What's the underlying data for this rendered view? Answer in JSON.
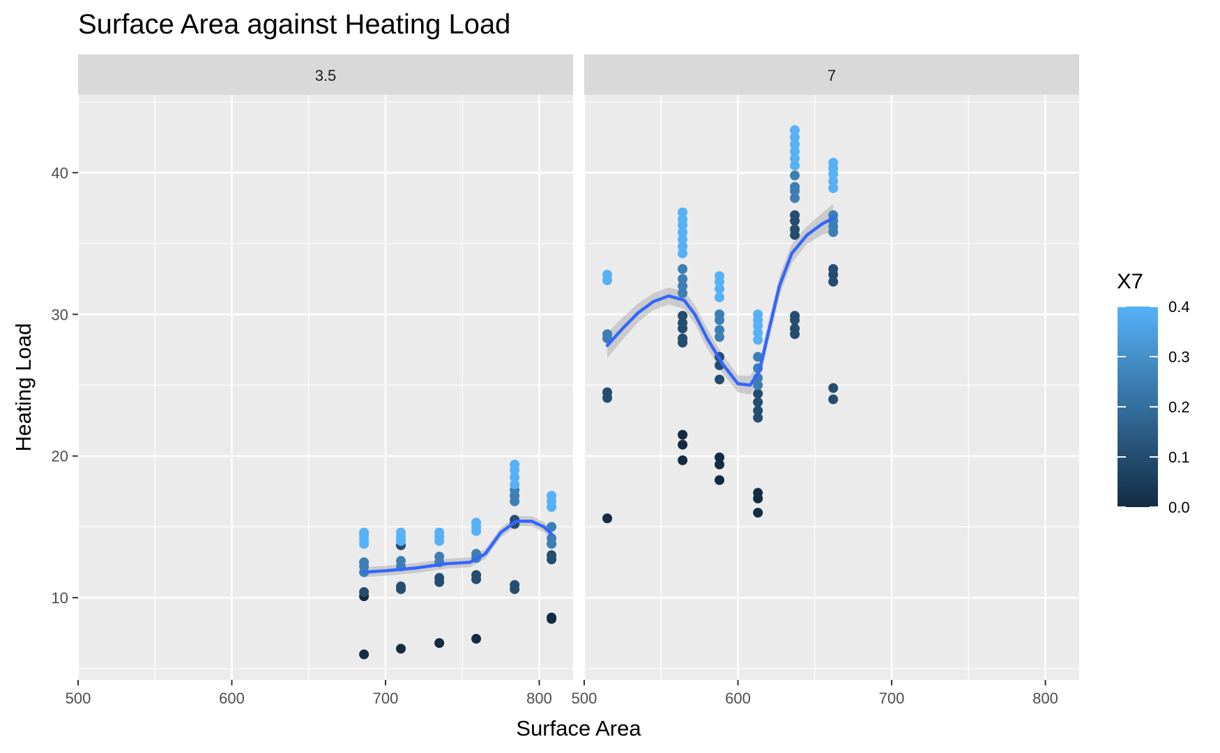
{
  "chart_data": {
    "type": "scatter",
    "title": "Surface Area against Heating Load",
    "xlabel": "Surface Area",
    "ylabel": "Heating Load",
    "xlim": [
      500,
      822
    ],
    "ylim": [
      4.2,
      45.5
    ],
    "x_ticks": [
      "500",
      "600",
      "700",
      "800"
    ],
    "y_ticks": [
      "10",
      "20",
      "30",
      "40"
    ],
    "grid": true,
    "legend": {
      "title": "X7",
      "position": "right",
      "labels": [
        "0.0",
        "0.1",
        "0.2",
        "0.3",
        "0.4"
      ],
      "range": [
        0,
        0.4
      ],
      "colors": [
        "#132B43",
        "#56B1F7"
      ]
    },
    "smooth_color": "#3366FF",
    "panels": [
      {
        "label": "3.5",
        "points": [
          [
            686,
            6.0,
            0
          ],
          [
            686,
            10.1,
            0
          ],
          [
            686,
            10.4,
            0.1
          ],
          [
            686,
            11.8,
            0.25
          ],
          [
            686,
            12.2,
            0.25
          ],
          [
            686,
            12.5,
            0.25
          ],
          [
            686,
            13.8,
            0.4
          ],
          [
            686,
            14.1,
            0.4
          ],
          [
            686,
            14.4,
            0.4
          ],
          [
            686,
            14.6,
            0.4
          ],
          [
            710,
            6.4,
            0
          ],
          [
            710,
            10.6,
            0.1
          ],
          [
            710,
            10.8,
            0.1
          ],
          [
            710,
            12.2,
            0.25
          ],
          [
            710,
            12.6,
            0.25
          ],
          [
            710,
            13.7,
            0.1
          ],
          [
            710,
            14.0,
            0.4
          ],
          [
            710,
            14.3,
            0.4
          ],
          [
            710,
            14.6,
            0.4
          ],
          [
            735,
            6.8,
            0
          ],
          [
            735,
            11.1,
            0.1
          ],
          [
            735,
            11.4,
            0.1
          ],
          [
            735,
            12.5,
            0.25
          ],
          [
            735,
            12.9,
            0.25
          ],
          [
            735,
            14.0,
            0.4
          ],
          [
            735,
            14.3,
            0.4
          ],
          [
            735,
            14.6,
            0.4
          ],
          [
            759,
            7.1,
            0
          ],
          [
            759,
            11.3,
            0.1
          ],
          [
            759,
            11.6,
            0.1
          ],
          [
            759,
            12.8,
            0.25
          ],
          [
            759,
            13.1,
            0.25
          ],
          [
            759,
            14.7,
            0.4
          ],
          [
            759,
            15.0,
            0.4
          ],
          [
            759,
            15.3,
            0.4
          ],
          [
            784,
            10.6,
            0.1
          ],
          [
            784,
            10.9,
            0.1
          ],
          [
            784,
            15.2,
            0.1
          ],
          [
            784,
            15.5,
            0.1
          ],
          [
            784,
            16.8,
            0.25
          ],
          [
            784,
            17.2,
            0.25
          ],
          [
            784,
            17.6,
            0.25
          ],
          [
            784,
            18.0,
            0.4
          ],
          [
            784,
            18.5,
            0.4
          ],
          [
            784,
            19.0,
            0.4
          ],
          [
            784,
            19.4,
            0.4
          ],
          [
            808,
            8.5,
            0
          ],
          [
            808,
            8.6,
            0
          ],
          [
            808,
            12.7,
            0.1
          ],
          [
            808,
            13.0,
            0.1
          ],
          [
            808,
            13.8,
            0.25
          ],
          [
            808,
            14.2,
            0.25
          ],
          [
            808,
            15.0,
            0.25
          ],
          [
            808,
            16.4,
            0.4
          ],
          [
            808,
            16.8,
            0.4
          ],
          [
            808,
            17.2,
            0.4
          ]
        ],
        "smooth": [
          [
            686,
            11.8
          ],
          [
            700,
            11.9
          ],
          [
            720,
            12.1
          ],
          [
            740,
            12.4
          ],
          [
            755,
            12.5
          ],
          [
            765,
            13.1
          ],
          [
            775,
            14.6
          ],
          [
            785,
            15.4
          ],
          [
            795,
            15.4
          ],
          [
            803,
            15.0
          ],
          [
            808,
            14.5
          ]
        ],
        "band": 0.35
      },
      {
        "label": "7",
        "points": [
          [
            515,
            15.6,
            0
          ],
          [
            515,
            24.1,
            0.1
          ],
          [
            515,
            24.5,
            0.1
          ],
          [
            515,
            28.3,
            0.25
          ],
          [
            515,
            28.6,
            0.25
          ],
          [
            515,
            32.4,
            0.4
          ],
          [
            515,
            32.8,
            0.4
          ],
          [
            564,
            19.7,
            0
          ],
          [
            564,
            20.8,
            0
          ],
          [
            564,
            21.5,
            0
          ],
          [
            564,
            28.0,
            0.1
          ],
          [
            564,
            28.3,
            0.1
          ],
          [
            564,
            29.0,
            0.1
          ],
          [
            564,
            29.4,
            0.1
          ],
          [
            564,
            29.9,
            0.1
          ],
          [
            564,
            31.5,
            0.25
          ],
          [
            564,
            32.0,
            0.25
          ],
          [
            564,
            32.5,
            0.25
          ],
          [
            564,
            33.2,
            0.25
          ],
          [
            564,
            34.3,
            0.4
          ],
          [
            564,
            34.8,
            0.4
          ],
          [
            564,
            35.3,
            0.4
          ],
          [
            564,
            35.8,
            0.4
          ],
          [
            564,
            36.3,
            0.4
          ],
          [
            564,
            36.7,
            0.4
          ],
          [
            564,
            37.2,
            0.4
          ],
          [
            588,
            18.3,
            0
          ],
          [
            588,
            19.4,
            0
          ],
          [
            588,
            19.9,
            0
          ],
          [
            588,
            25.4,
            0.1
          ],
          [
            588,
            26.4,
            0.1
          ],
          [
            588,
            27.0,
            0.1
          ],
          [
            588,
            28.4,
            0.25
          ],
          [
            588,
            28.9,
            0.25
          ],
          [
            588,
            29.6,
            0.25
          ],
          [
            588,
            30.0,
            0.25
          ],
          [
            588,
            31.2,
            0.4
          ],
          [
            588,
            31.8,
            0.4
          ],
          [
            588,
            32.3,
            0.4
          ],
          [
            588,
            32.7,
            0.4
          ],
          [
            613,
            16.0,
            0
          ],
          [
            613,
            17.0,
            0
          ],
          [
            613,
            17.4,
            0
          ],
          [
            613,
            22.7,
            0.1
          ],
          [
            613,
            23.2,
            0.1
          ],
          [
            613,
            23.8,
            0.1
          ],
          [
            613,
            24.4,
            0.1
          ],
          [
            613,
            25.0,
            0.25
          ],
          [
            613,
            25.5,
            0.25
          ],
          [
            613,
            26.2,
            0.25
          ],
          [
            613,
            27.0,
            0.25
          ],
          [
            613,
            28.2,
            0.4
          ],
          [
            613,
            28.7,
            0.4
          ],
          [
            613,
            29.2,
            0.4
          ],
          [
            613,
            29.6,
            0.4
          ],
          [
            613,
            30.0,
            0.4
          ],
          [
            637,
            28.6,
            0.1
          ],
          [
            637,
            29.0,
            0.1
          ],
          [
            637,
            29.6,
            0.1
          ],
          [
            637,
            29.9,
            0.1
          ],
          [
            637,
            35.6,
            0.1
          ],
          [
            637,
            36.0,
            0.1
          ],
          [
            637,
            36.6,
            0.1
          ],
          [
            637,
            37.0,
            0.1
          ],
          [
            637,
            38.2,
            0.25
          ],
          [
            637,
            38.7,
            0.25
          ],
          [
            637,
            39.0,
            0.25
          ],
          [
            637,
            39.8,
            0.25
          ],
          [
            637,
            40.5,
            0.4
          ],
          [
            637,
            41.0,
            0.4
          ],
          [
            637,
            41.5,
            0.4
          ],
          [
            637,
            42.0,
            0.4
          ],
          [
            637,
            42.5,
            0.4
          ],
          [
            637,
            43.0,
            0.4
          ],
          [
            662,
            24.0,
            0.1
          ],
          [
            662,
            24.8,
            0.1
          ],
          [
            662,
            32.3,
            0.1
          ],
          [
            662,
            32.8,
            0.1
          ],
          [
            662,
            33.2,
            0.1
          ],
          [
            662,
            35.8,
            0.25
          ],
          [
            662,
            36.2,
            0.25
          ],
          [
            662,
            36.6,
            0.25
          ],
          [
            662,
            37.0,
            0.25
          ],
          [
            662,
            38.9,
            0.4
          ],
          [
            662,
            39.4,
            0.4
          ],
          [
            662,
            39.9,
            0.4
          ],
          [
            662,
            40.3,
            0.4
          ],
          [
            662,
            40.7,
            0.4
          ]
        ],
        "smooth": [
          [
            515,
            27.8
          ],
          [
            525,
            29.0
          ],
          [
            535,
            30.1
          ],
          [
            545,
            30.9
          ],
          [
            555,
            31.3
          ],
          [
            565,
            31.0
          ],
          [
            572,
            30.0
          ],
          [
            580,
            28.3
          ],
          [
            590,
            26.5
          ],
          [
            600,
            25.1
          ],
          [
            608,
            25.0
          ],
          [
            614,
            26.0
          ],
          [
            620,
            28.8
          ],
          [
            627,
            32.0
          ],
          [
            635,
            34.3
          ],
          [
            645,
            35.6
          ],
          [
            655,
            36.4
          ],
          [
            662,
            36.8
          ]
        ],
        "band_profile": [
          [
            515,
            0.9
          ],
          [
            540,
            0.6
          ],
          [
            560,
            0.6
          ],
          [
            580,
            0.7
          ],
          [
            600,
            0.6
          ],
          [
            613,
            0.7
          ],
          [
            630,
            0.7
          ],
          [
            650,
            0.6
          ],
          [
            662,
            1.0
          ]
        ]
      }
    ]
  }
}
